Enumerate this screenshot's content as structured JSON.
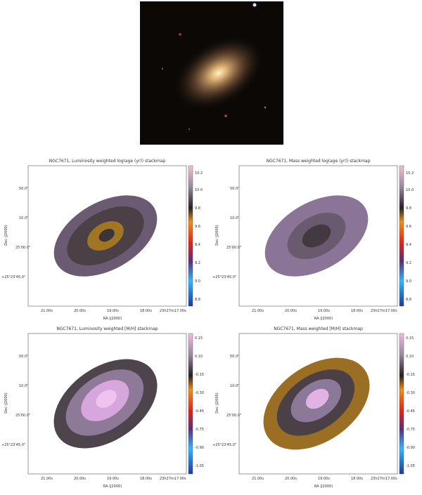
{
  "figure": {
    "image_alt": "galaxy image"
  },
  "panels": [
    {
      "title": "NGC7671, Luminosity weighted log(age (yr)) stackmap",
      "ylabel": "Dec (J2000)",
      "xlabel": "RA (J2000)",
      "yticks": [
        "50.0\"",
        "10.0\"",
        "25'00.0\"",
        "+25°23'45.0\""
      ],
      "xticks": [
        "21.00s",
        "20.00s",
        "19.00s",
        "18.00s",
        "23h27m17.00s"
      ],
      "cbar_ticks": [
        "10.2",
        "10.0",
        "9.8",
        "9.6",
        "9.4",
        "9.2",
        "9.0",
        "8.8"
      ]
    },
    {
      "title": "NGC7671, Mass weighted log(age (yr)) stackmap",
      "ylabel": "Dec (J2000)",
      "xlabel": "RA (J2000)",
      "yticks": [
        "50.0\"",
        "10.0\"",
        "25'00.0\"",
        "+25°23'45.0\""
      ],
      "xticks": [
        "21.00s",
        "20.00s",
        "19.00s",
        "18.00s",
        "23h27m17.00s"
      ],
      "cbar_ticks": [
        "10.2",
        "10.0",
        "9.8",
        "9.6",
        "9.4",
        "9.2",
        "9.0",
        "8.8"
      ]
    },
    {
      "title": "NGC7671, Luminosity weighted [M/H] stackmap",
      "ylabel": "Dec (J2000)",
      "xlabel": "RA (J2000)",
      "yticks": [
        "50.0\"",
        "10.0\"",
        "25'00.0\"",
        "+25°23'45.0\""
      ],
      "xticks": [
        "21.00s",
        "20.00s",
        "19.00s",
        "18.00s",
        "23h27m17.00s"
      ],
      "cbar_ticks": [
        "0.15",
        "0.10",
        "-0.15",
        "-0.30",
        "-0.45",
        "-0.75",
        "-0.90",
        "-1.05"
      ]
    },
    {
      "title": "NGC7671, Mass weighted [M/H] stackmap",
      "ylabel": "Dec (J2000)",
      "xlabel": "RA (J2000)",
      "yticks": [
        "50.0\"",
        "10.0\"",
        "25'00.0\"",
        "+25°23'45.0\""
      ],
      "xticks": [
        "21.00s",
        "20.00s",
        "19.00s",
        "18.00s",
        "23h27m17.00s"
      ],
      "cbar_ticks": [
        "0.15",
        "0.10",
        "-0.15",
        "-0.30",
        "-0.45",
        "-0.75",
        "-0.90",
        "-1.05"
      ]
    }
  ]
}
